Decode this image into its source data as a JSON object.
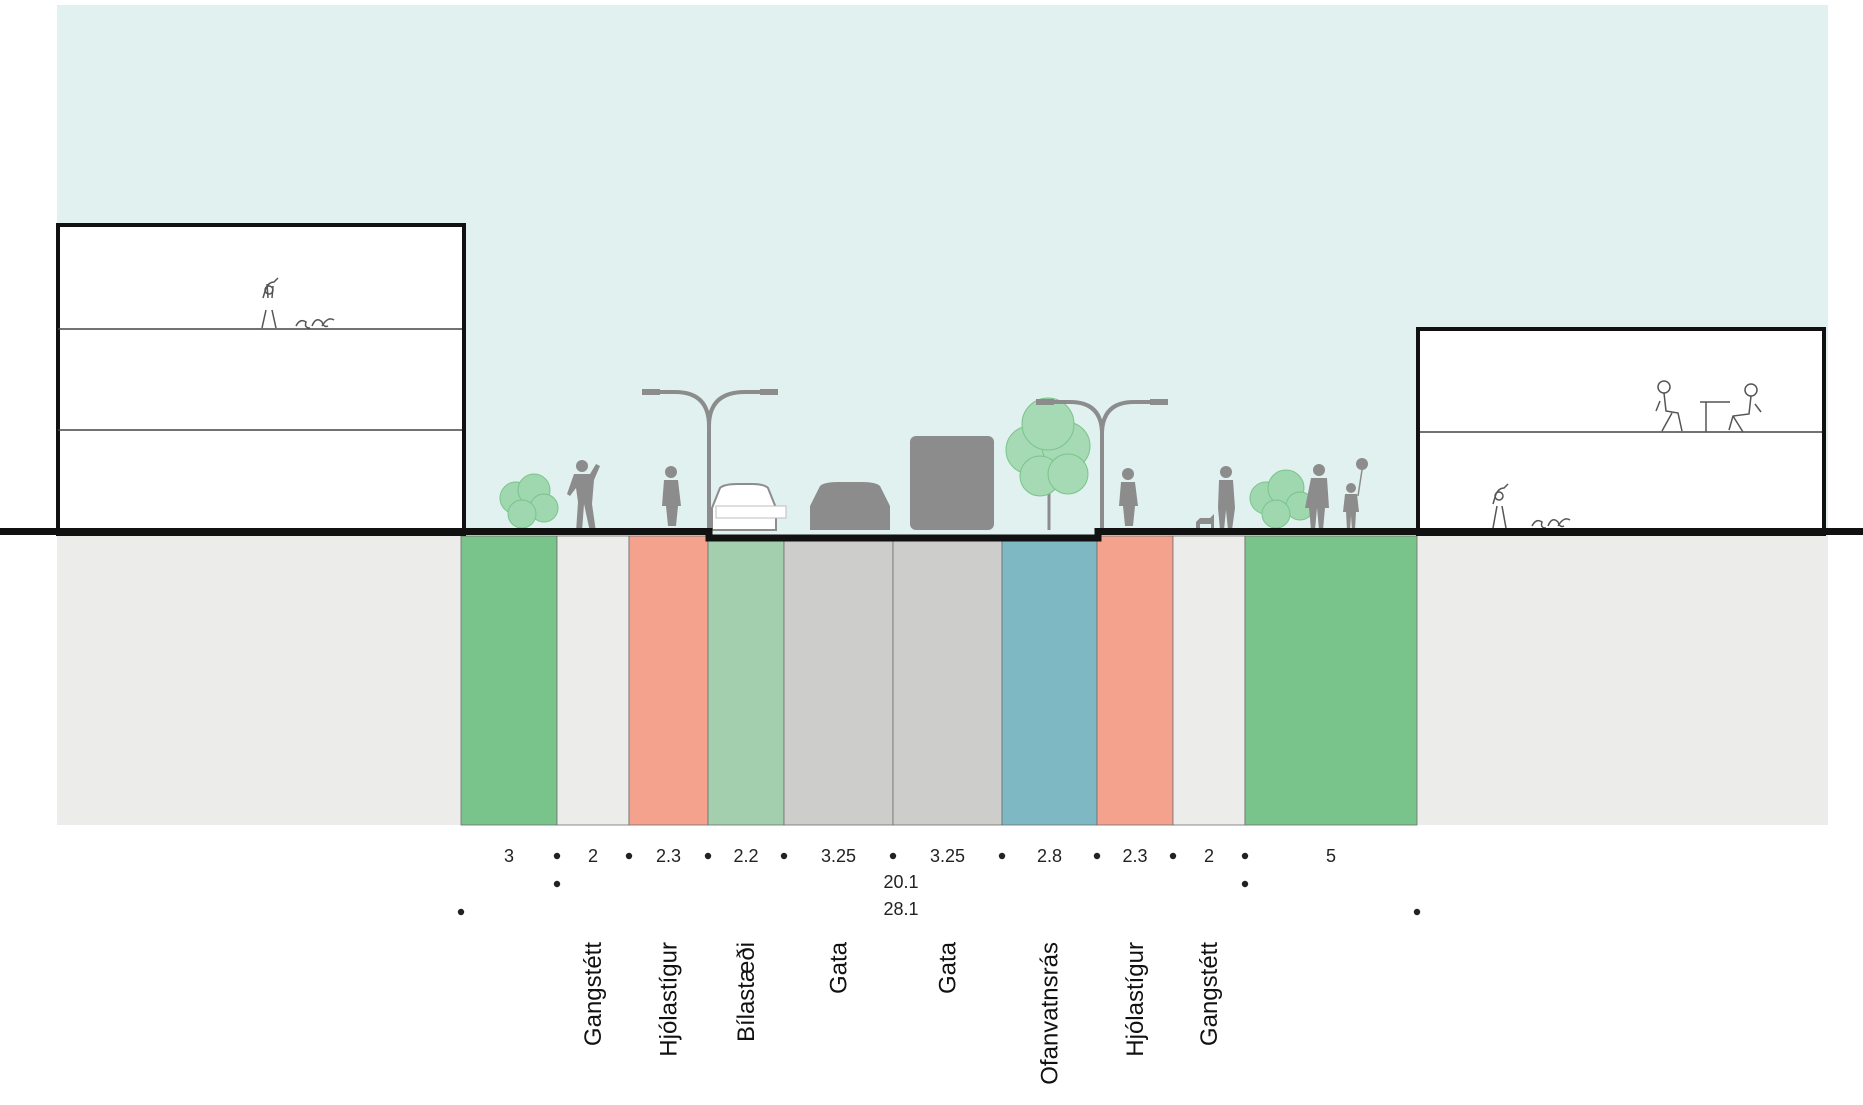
{
  "colors": {
    "sky": "#e1f1f0",
    "ground": "#ececeb",
    "green_strip": "#79c48a",
    "sidewalk": "#ececeb",
    "bike_lane": "#f4a28d",
    "parking": "#a3cfae",
    "street": "#cdcdcc",
    "stormwater": "#7db8c3",
    "silhouette": "#8c8c8c",
    "tree": "#8fcf9f",
    "building_fill": "#ffffff",
    "line": "#111111"
  },
  "section": {
    "segments": [
      {
        "width_m": 3,
        "label": "",
        "kind": "green_strip"
      },
      {
        "width_m": 2,
        "label": "Gangstétt",
        "kind": "sidewalk"
      },
      {
        "width_m": 2.3,
        "label": "Hjólastígur",
        "kind": "bike_lane"
      },
      {
        "width_m": 2.2,
        "label": "Bílastæði",
        "kind": "parking"
      },
      {
        "width_m": 3.25,
        "label": "Gata",
        "kind": "street"
      },
      {
        "width_m": 3.25,
        "label": "Gata",
        "kind": "street"
      },
      {
        "width_m": 2.8,
        "label": "Ofanvatnsrás",
        "kind": "stormwater"
      },
      {
        "width_m": 2.3,
        "label": "Hjólastígur",
        "kind": "bike_lane"
      },
      {
        "width_m": 2,
        "label": "Gangstétt",
        "kind": "sidewalk"
      },
      {
        "width_m": 5,
        "label": "",
        "kind": "green_strip"
      }
    ],
    "total_inner_m": "20.1",
    "total_overall_m": "28.1"
  },
  "icons": [
    "left-building-icon",
    "right-building-icon",
    "street-lamp-icon",
    "tree-icon",
    "shrub-icon",
    "car-icon",
    "bus-icon",
    "pedestrian-icon",
    "cyclist-icon",
    "dog-walker-icon",
    "child-with-balloon-icon",
    "cafe-table-icon"
  ]
}
